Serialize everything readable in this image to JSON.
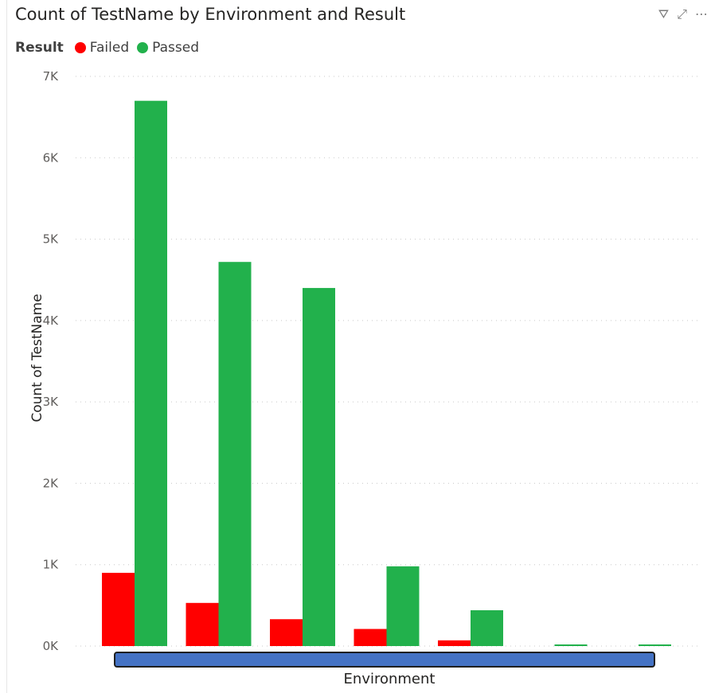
{
  "chart_data": {
    "type": "bar",
    "title": "Count of TestName by Environment and Result",
    "xlabel": "Environment",
    "ylabel": "Count of TestName",
    "legend_title": "Result",
    "legend_position": "top-left",
    "ylim": [
      0,
      7000
    ],
    "yticks": [
      "0K",
      "1K",
      "2K",
      "3K",
      "4K",
      "5K",
      "6K",
      "7K"
    ],
    "grid": true,
    "categories": [
      "",
      "",
      "",
      "",
      "",
      "",
      ""
    ],
    "series": [
      {
        "name": "Failed",
        "color": "#ff0000",
        "values": [
          900,
          530,
          330,
          210,
          70,
          0,
          0
        ]
      },
      {
        "name": "Passed",
        "color": "#22b14c",
        "values": [
          6700,
          4720,
          4400,
          980,
          440,
          20,
          20
        ]
      }
    ]
  },
  "header": {
    "icons": [
      "filter-icon",
      "focus-mode-icon",
      "more-options-icon"
    ],
    "filter_glyph": "⛛",
    "focus_glyph": "⤢",
    "more_glyph": "⋯"
  }
}
